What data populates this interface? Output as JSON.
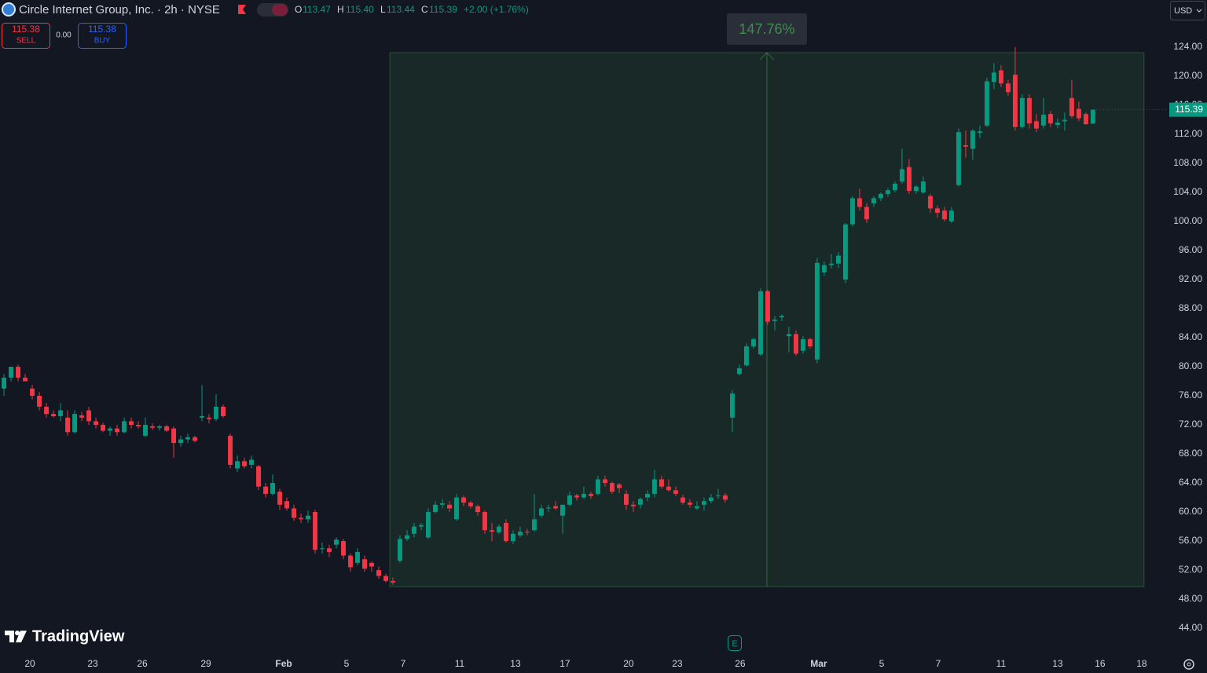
{
  "chart_data": {
    "type": "candlestick",
    "title": "Circle Internet Group, Inc. · 2h · NYSE",
    "legend_labels": {
      "open": "O",
      "high": "H",
      "low": "L",
      "close": "C"
    },
    "legend_values": {
      "open": "113.47",
      "high": "115.40",
      "low": "113.44",
      "close": "115.39"
    },
    "change": "+2.00 (+1.76%)",
    "trade_panel": {
      "sell_price": "115.38",
      "sell_label": "SELL",
      "spread": "0.00",
      "buy_price": "115.38",
      "buy_label": "BUY"
    },
    "currency": "USD",
    "price_tag": "115.39",
    "logo": "TradingView",
    "earnings_marker": "E",
    "up_color": "#089981",
    "down_color": "#f23645",
    "grid": false,
    "xlim": [
      -0.56,
      163.9
    ],
    "xticks": [
      {
        "value": 3.67,
        "label": "20"
      },
      {
        "value": 12.56,
        "label": "23"
      },
      {
        "value": 19.56,
        "label": "26"
      },
      {
        "value": 28.56,
        "label": "29"
      },
      {
        "value": 39.56,
        "label": "Feb"
      },
      {
        "value": 48.44,
        "label": "5"
      },
      {
        "value": 56.44,
        "label": "7"
      },
      {
        "value": 64.44,
        "label": "11"
      },
      {
        "value": 72.33,
        "label": "13"
      },
      {
        "value": 79.33,
        "label": "17"
      },
      {
        "value": 88.33,
        "label": "20"
      },
      {
        "value": 95.22,
        "label": "23"
      },
      {
        "value": 104.11,
        "label": "26"
      },
      {
        "value": 115.22,
        "label": "Mar"
      },
      {
        "value": 124.11,
        "label": "5"
      },
      {
        "value": 132.11,
        "label": "7"
      },
      {
        "value": 141,
        "label": "11"
      },
      {
        "value": 149,
        "label": "13"
      },
      {
        "value": 155,
        "label": "16"
      },
      {
        "value": 160.89,
        "label": "18"
      }
    ],
    "ylim": [
      40.76,
      130.49
    ],
    "yticks": [
      {
        "value": 44,
        "label": "44.00"
      },
      {
        "value": 48,
        "label": "48.00"
      },
      {
        "value": 52,
        "label": "52.00"
      },
      {
        "value": 56,
        "label": "56.00"
      },
      {
        "value": 60,
        "label": "60.00"
      },
      {
        "value": 64,
        "label": "64.00"
      },
      {
        "value": 68,
        "label": "68.00"
      },
      {
        "value": 72,
        "label": "72.00"
      },
      {
        "value": 76,
        "label": "76.00"
      },
      {
        "value": 80,
        "label": "80.00"
      },
      {
        "value": 84,
        "label": "84.00"
      },
      {
        "value": 88,
        "label": "88.00"
      },
      {
        "value": 92,
        "label": "92.00"
      },
      {
        "value": 96,
        "label": "96.00"
      },
      {
        "value": 100,
        "label": "100.00"
      },
      {
        "value": 104,
        "label": "104.00"
      },
      {
        "value": 108,
        "label": "108.00"
      },
      {
        "value": 112,
        "label": "112.00"
      },
      {
        "value": 116,
        "label": "116.00"
      },
      {
        "value": 120,
        "label": "120.00"
      },
      {
        "value": 124,
        "label": "124.00"
      }
    ],
    "measure": {
      "x": [
        54.56,
        161.22
      ],
      "y": [
        49.73,
        123.24
      ],
      "label": "147.76%"
    },
    "open": [
      77,
      78.5,
      80,
      78.5,
      77,
      76,
      74.5,
      73.5,
      73.2,
      73,
      71,
      73.3,
      74,
      72.5,
      72,
      71.2,
      71.5,
      71,
      72.5,
      72,
      70.5,
      71.8,
      71.6,
      71.8,
      71.5,
      69.5,
      70,
      70.3,
      73,
      73,
      72.8,
      74.5,
      70.5,
      66,
      67,
      66.5,
      66.3,
      63.5,
      62.5,
      62.8,
      61.5,
      60.5,
      59.2,
      59,
      60,
      55,
      55,
      55.5,
      56,
      54,
      53,
      53.5,
      53,
      52,
      51.2,
      50.5,
      53.3,
      56.3,
      57,
      58,
      56.5,
      60,
      61,
      61,
      59,
      62,
      61.3,
      60.8,
      60,
      57.5,
      57.2,
      58.5,
      56,
      56.8,
      57.3,
      57.5,
      59.5,
      60.5,
      60.8,
      59.5,
      61,
      62.3,
      62,
      62.5,
      62.5,
      64.5,
      64,
      63.8,
      62.5,
      61,
      61,
      62,
      62.5,
      64.5,
      63.5,
      63,
      62,
      61.3,
      60.5,
      61,
      61.5,
      62.2,
      62.3,
      73,
      79,
      80.2,
      82.8,
      81.7,
      90.4,
      86.3,
      86.8,
      84.2,
      84.5,
      82.2,
      83.8,
      81,
      93,
      94,
      94.2,
      92,
      99.6,
      103.2,
      102,
      102.5,
      103.2,
      103.8,
      104.3,
      105.5,
      107.5,
      104.2,
      104,
      103.5,
      101.8,
      101.5,
      100,
      105,
      110.5,
      110,
      112.2,
      113.2,
      119.2,
      120.8,
      119,
      120.2,
      113,
      117,
      113.8,
      113.2,
      114.8,
      113.3,
      113.8,
      117,
      115.5,
      114.8,
      113.47
    ],
    "high": [
      79,
      80,
      80.3,
      79,
      77.5,
      76.5,
      75,
      74,
      75,
      74,
      74,
      73.8,
      74.5,
      73,
      72.3,
      71.8,
      72,
      73,
      73,
      72.5,
      73,
      72.2,
      72,
      72,
      71.8,
      70.5,
      70.8,
      70.5,
      77.5,
      73.5,
      76.2,
      74.8,
      70.8,
      67.8,
      67.5,
      67.8,
      66.5,
      64,
      65.2,
      63.2,
      62,
      61,
      59.8,
      60.2,
      60.3,
      55.8,
      55.5,
      56.5,
      56.3,
      54.3,
      55,
      54,
      53.2,
      52.5,
      51.5,
      51,
      56.8,
      57.5,
      58.5,
      58.5,
      60.5,
      61.5,
      61.8,
      61.5,
      62.5,
      62.3,
      61.5,
      61,
      60.2,
      58.5,
      58.3,
      59,
      57.5,
      58,
      57.7,
      62.5,
      61,
      61,
      61.5,
      61,
      62.8,
      62.5,
      63.5,
      62.8,
      65,
      65,
      64.2,
      64,
      63,
      61.5,
      62,
      63,
      65.8,
      65,
      64.5,
      63.5,
      62.4,
      61.8,
      61.5,
      62,
      62.5,
      63.2,
      62.6,
      76.8,
      80.3,
      83.2,
      84,
      90.8,
      90.6,
      87,
      87.2,
      85.5,
      85,
      84.2,
      84,
      95,
      94.5,
      95.5,
      95.8,
      99.8,
      103.5,
      104.5,
      102.5,
      103.5,
      104,
      104.6,
      105.5,
      110,
      108.6,
      105,
      106.2,
      103.8,
      102.2,
      102,
      102,
      112.8,
      112.5,
      112.7,
      113.2,
      119.8,
      121.8,
      121.5,
      119.5,
      124,
      117.5,
      117.5,
      114.8,
      117,
      115.2,
      114.2,
      115,
      119.5,
      116.5,
      115,
      115.4
    ],
    "low": [
      76,
      78,
      78,
      78,
      75.5,
      74,
      73,
      73,
      72.5,
      70.5,
      70.8,
      72.5,
      72,
      71.5,
      71,
      70.5,
      70.5,
      70.8,
      71.5,
      71.5,
      70.3,
      71.3,
      71.2,
      71,
      67.5,
      69,
      69.5,
      69.6,
      72.5,
      72.2,
      72.5,
      73,
      66,
      65.5,
      66,
      66,
      63,
      62,
      62.3,
      60.3,
      60.2,
      58.8,
      58.5,
      58.5,
      54.3,
      54.3,
      53.8,
      55,
      53.5,
      51.8,
      52.7,
      51.8,
      51.8,
      50.8,
      50.3,
      50,
      53,
      56,
      56.5,
      57.5,
      56.3,
      59.8,
      60.5,
      60,
      58.8,
      60.8,
      60.5,
      59.5,
      57,
      56,
      57,
      55.8,
      55.6,
      56.5,
      56.8,
      57.3,
      59.2,
      60,
      60.3,
      57,
      60.8,
      61.6,
      61.8,
      61.8,
      62.3,
      63.5,
      62.5,
      62.6,
      60.3,
      60,
      60.5,
      61.5,
      62,
      63.2,
      62.8,
      62.2,
      61,
      60.6,
      60.3,
      60.2,
      61.2,
      61.8,
      61.3,
      71,
      78.8,
      80,
      82.5,
      81.5,
      85.8,
      85,
      86.3,
      82,
      81.5,
      81.8,
      82.5,
      80.5,
      92.5,
      93.5,
      93.6,
      91.5,
      99.3,
      101.5,
      99.8,
      102,
      102.8,
      103.4,
      104,
      105.2,
      103.8,
      103.8,
      103.8,
      101.2,
      100.5,
      100,
      99.8,
      104.8,
      108.8,
      108.5,
      111.5,
      113,
      118.2,
      118.5,
      117.3,
      112.5,
      112.8,
      112.8,
      112.3,
      112.8,
      113,
      112.8,
      112.5,
      114.2,
      113.8,
      113.3,
      113.44
    ],
    "close": [
      78.5,
      80,
      78.5,
      78,
      76,
      74.5,
      73.5,
      73.2,
      74,
      71,
      73.5,
      73,
      72.5,
      72,
      71.2,
      71.5,
      71,
      72.5,
      72,
      71.8,
      72,
      71.6,
      71.8,
      71.2,
      69.5,
      70,
      70.3,
      69.8,
      73.2,
      72.8,
      74.5,
      73.2,
      66.5,
      67,
      66.3,
      67.2,
      63.5,
      62.5,
      64,
      61,
      60.5,
      59.2,
      59,
      59.5,
      54.8,
      55,
      54.5,
      56.2,
      54,
      52.4,
      54.5,
      52.2,
      52.5,
      51.2,
      50.5,
      50.3,
      56.3,
      56.8,
      58,
      58.2,
      60,
      61,
      61.2,
      60.5,
      62,
      61.3,
      60.8,
      60,
      57.5,
      57.3,
      58,
      56,
      57,
      57.3,
      57.2,
      59,
      60.5,
      60.6,
      60.5,
      61,
      62.3,
      62,
      62.5,
      62.2,
      64.5,
      64,
      62.8,
      63.3,
      61,
      60.8,
      61.8,
      62.5,
      64.5,
      63.5,
      63,
      62.5,
      61.3,
      61,
      60.8,
      61.5,
      62,
      62.3,
      61.7,
      76.3,
      79.8,
      82.8,
      83.8,
      90.4,
      86.2,
      86.5,
      87,
      84.5,
      81.8,
      83.8,
      82.8,
      94.3,
      94,
      94.2,
      95.3,
      99.6,
      103.2,
      102,
      100.3,
      103.2,
      103.8,
      104.3,
      105.2,
      107.2,
      104.2,
      104.8,
      105.5,
      101.8,
      101.2,
      100.3,
      101.5,
      112.3,
      110.3,
      112.5,
      112.4,
      119.3,
      120.5,
      119,
      117.8,
      113,
      117,
      113.5,
      112.8,
      114.7,
      113.5,
      113.6,
      114,
      114.5,
      114.2,
      113.4,
      115.39
    ]
  }
}
